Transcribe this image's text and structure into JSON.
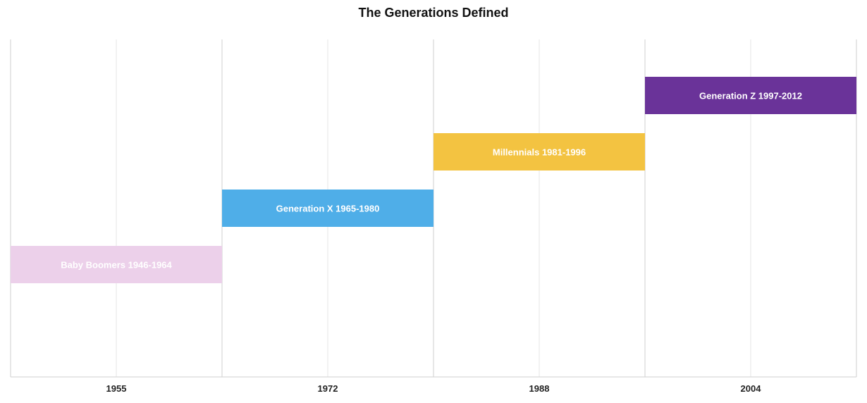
{
  "chart_data": {
    "type": "bar",
    "orientation": "timeline",
    "title": "The Generations Defined",
    "categories": [
      "1955",
      "1972",
      "1988",
      "2004"
    ],
    "series": [
      {
        "name": "Baby Boomers 1946-1964",
        "start": 1946,
        "end": 1964,
        "label": "Baby Boomers 1946-1964",
        "color": "#ecd0ea"
      },
      {
        "name": "Generation X 1965-1980",
        "start": 1965,
        "end": 1980,
        "label": "Generation X 1965-1980",
        "color": "#4faee8"
      },
      {
        "name": "Millennials 1981-1996",
        "start": 1981,
        "end": 1996,
        "label": "Millennials 1981-1996",
        "color": "#f3c341"
      },
      {
        "name": "Generation Z 1997-2012",
        "start": 1997,
        "end": 2012,
        "label": "Generation Z 1997-2012",
        "color": "#6a3399"
      }
    ],
    "grid": true,
    "legend": "none"
  }
}
